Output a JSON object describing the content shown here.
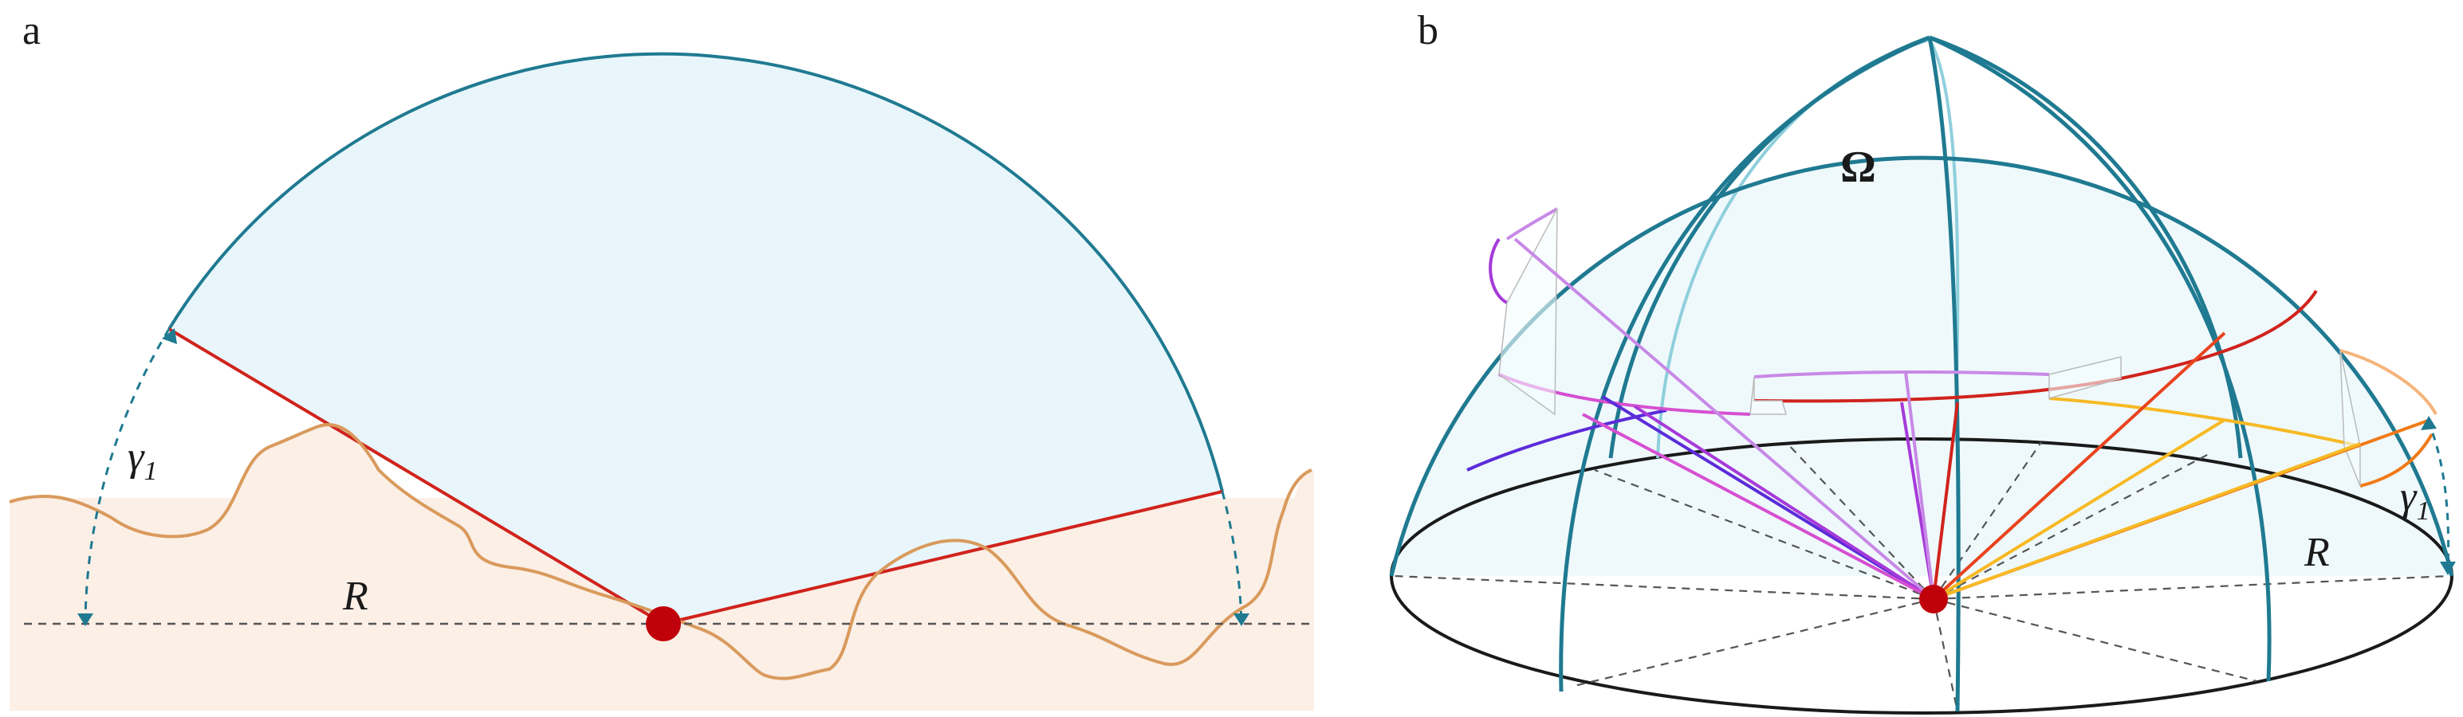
{
  "panels": {
    "a": {
      "label": "a",
      "symbols": {
        "gamma": "γ",
        "gamma_sub": "1",
        "radius": "R"
      }
    },
    "b": {
      "label": "b",
      "symbols": {
        "omega": "Ω",
        "gamma": "γ",
        "gamma_sub": "1",
        "radius": "R"
      }
    }
  },
  "colors": {
    "sky_fill": "#e8f6fb",
    "dome_line": "#1f7a91",
    "dome_line_light": "#8fcfdc",
    "horizon_line": "#d0231c",
    "terrain_line": "#d99a5c",
    "terrain_fill": "#fbefe6",
    "observer": "#c0000b",
    "dashed": "#555555",
    "ray_violet": "#5b2bd9",
    "ray_purple": "#a63ad9",
    "ray_magenta": "#d64fd1",
    "ray_red": "#d0231c",
    "ray_orange": "#f07a18",
    "ray_yellow": "#f7b924"
  }
}
